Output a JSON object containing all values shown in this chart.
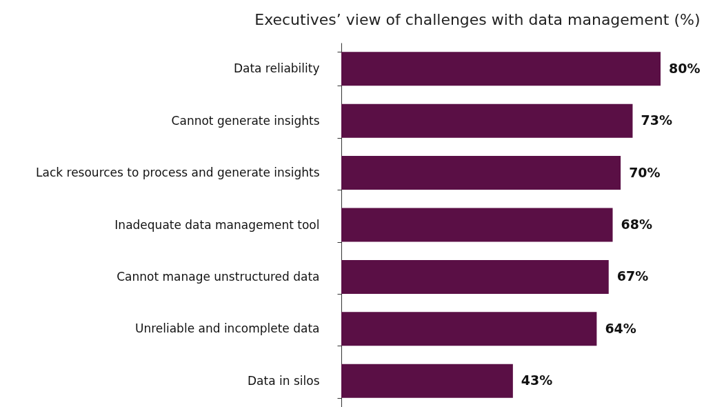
{
  "chart_data": {
    "type": "bar",
    "orientation": "horizontal",
    "title": "Executives’ view of challenges with data management (%)",
    "categories": [
      "Data reliability",
      "Cannot generate insights",
      "Lack resources to process and generate insights",
      "Inadequate data management tool",
      "Cannot manage unstructured data",
      "Unreliable and incomplete data",
      "Data in silos"
    ],
    "values": [
      80,
      73,
      70,
      68,
      67,
      64,
      43
    ],
    "value_labels": [
      "80%",
      "73%",
      "70%",
      "68%",
      "67%",
      "64%",
      "43%"
    ],
    "color": "#5a0f45"
  }
}
